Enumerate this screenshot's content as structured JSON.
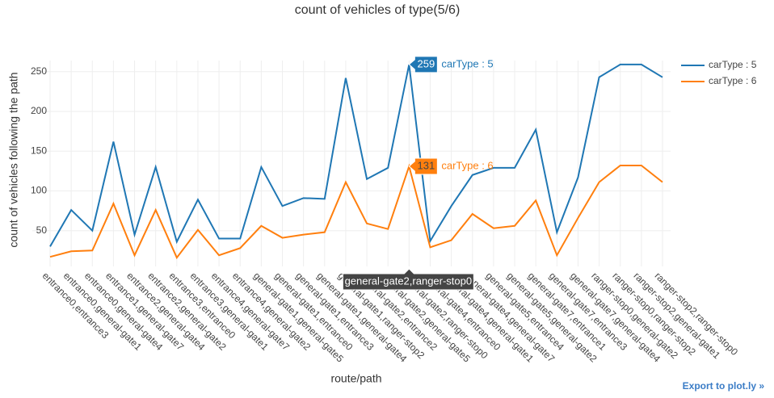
{
  "chart_data": {
    "type": "line",
    "title": "count of vehicles of type(5/6)",
    "x_label": "route/path",
    "y_label": "count of vehicles following the path",
    "categories": [
      "entrance0,entrance3",
      "entrance0,general-gate1",
      "entrance0,general-gate4",
      "entrance1,general-gate7",
      "entrance2,general-gate4",
      "entrance2,general-gate2",
      "entrance3,entrance0",
      "entrance3,general-gate1",
      "entrance4,general-gate7",
      "entrance4,general-gate2",
      "general-gate1,general-gate5",
      "general-gate1,entrance0",
      "general-gate1,entrance3",
      "general-gate1,general-gate4",
      "general-gate1,ranger-stop2",
      "general-gate2,entrance2",
      "general-gate2,general-gate5",
      "general-gate2,ranger-stop0",
      "general-gate4,entrance0",
      "general-gate4,general-gate1",
      "general-gate4,general-gate7",
      "general-gate5,entrance4",
      "general-gate5,general-gate2",
      "general-gate7,entrance1",
      "general-gate7,entrance3",
      "general-gate7,general-gate4",
      "ranger-stop0,general-gate2",
      "ranger-stop0,ranger-stop2",
      "ranger-stop2,general-gate1",
      "ranger-stop2,ranger-stop0"
    ],
    "series": [
      {
        "name": "carType : 5",
        "color": "#1f77b4",
        "values": [
          30,
          76,
          50,
          162,
          45,
          130,
          36,
          89,
          40,
          40,
          130,
          81,
          91,
          90,
          242,
          115,
          129,
          259,
          37,
          81,
          120,
          129,
          129,
          177,
          48,
          117,
          243,
          259,
          259,
          243
        ]
      },
      {
        "name": "carType : 6",
        "color": "#ff7f0e",
        "values": [
          17,
          24,
          25,
          84,
          19,
          76,
          16,
          51,
          19,
          28,
          56,
          41,
          45,
          48,
          111,
          59,
          52,
          131,
          29,
          38,
          71,
          53,
          56,
          88,
          19,
          66,
          111,
          132,
          132,
          111
        ]
      }
    ],
    "ylim": [
      5,
      264
    ],
    "yticks": [
      50,
      100,
      150,
      200,
      250
    ],
    "grid": true,
    "hover_index": 17,
    "link_text": "Export to plot.ly »"
  }
}
